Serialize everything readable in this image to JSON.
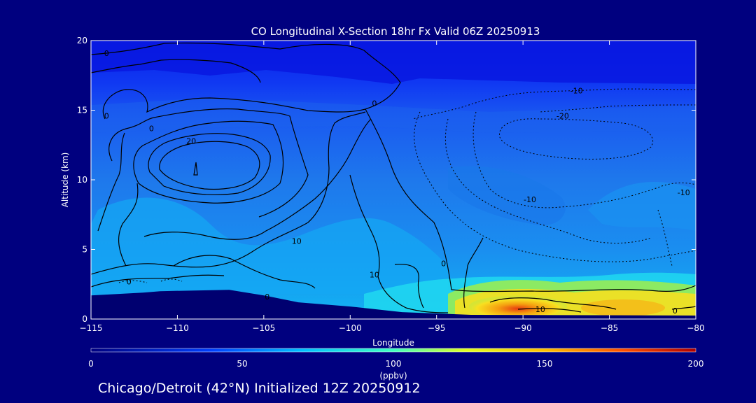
{
  "chart_data": {
    "type": "heatmap",
    "title": "CO Longitudinal X-Section 18hr  Fx Valid 06Z 20250913",
    "xlabel": "Longitude",
    "ylabel": "Altitude (km)",
    "x_ticks": [
      "−115",
      "−110",
      "−105",
      "−100",
      "−95",
      "−90",
      "−85",
      "−80"
    ],
    "y_ticks": [
      "0",
      "5",
      "10",
      "15",
      "20"
    ],
    "xlim": [
      -115,
      -80
    ],
    "ylim": [
      0,
      20
    ],
    "colorbar": {
      "label": "(ppbv)",
      "range": [
        0,
        200
      ],
      "ticks": [
        "0",
        "50",
        "100",
        "150",
        "200"
      ]
    },
    "contour_labels": [
      {
        "text": "0",
        "x": -114.1,
        "y": 19.1
      },
      {
        "text": "0",
        "x": -114.1,
        "y": 14.6
      },
      {
        "text": "0",
        "x": -111.5,
        "y": 13.7
      },
      {
        "text": "20",
        "x": -109.2,
        "y": 12.8
      },
      {
        "text": "0",
        "x": -98.6,
        "y": 15.5
      },
      {
        "text": "10",
        "x": -103.1,
        "y": 5.6
      },
      {
        "text": "0",
        "x": -112.8,
        "y": 2.7
      },
      {
        "text": "0",
        "x": -104.8,
        "y": 1.6
      },
      {
        "text": "10",
        "x": -98.6,
        "y": 3.2
      },
      {
        "text": "0",
        "x": -94.6,
        "y": 4.0
      },
      {
        "text": "-10",
        "x": -86.9,
        "y": 16.4
      },
      {
        "text": "-20",
        "x": -87.7,
        "y": 14.6
      },
      {
        "text": "-10",
        "x": -89.6,
        "y": 8.6
      },
      {
        "text": "-10",
        "x": -80.7,
        "y": 9.1
      },
      {
        "text": "10",
        "x": -89.0,
        "y": 0.7
      },
      {
        "text": "0",
        "x": -81.2,
        "y": 0.6
      }
    ],
    "terrain_km": [
      [
        -115,
        1.7
      ],
      [
        -112,
        1.9
      ],
      [
        -111,
        2.0
      ],
      [
        -107,
        2.1
      ],
      [
        -105,
        1.7
      ],
      [
        -103,
        1.2
      ],
      [
        -100,
        0.9
      ],
      [
        -97,
        0.5
      ],
      [
        -93,
        0.3
      ],
      [
        -80,
        0.25
      ]
    ]
  },
  "footer": {
    "text": "Chicago/Detroit (42°N) Initialized 12Z 20250912"
  },
  "colors": {
    "background": "#00007f",
    "axis": "#ffffff",
    "contour": "#000000",
    "terrain": "#000070"
  }
}
